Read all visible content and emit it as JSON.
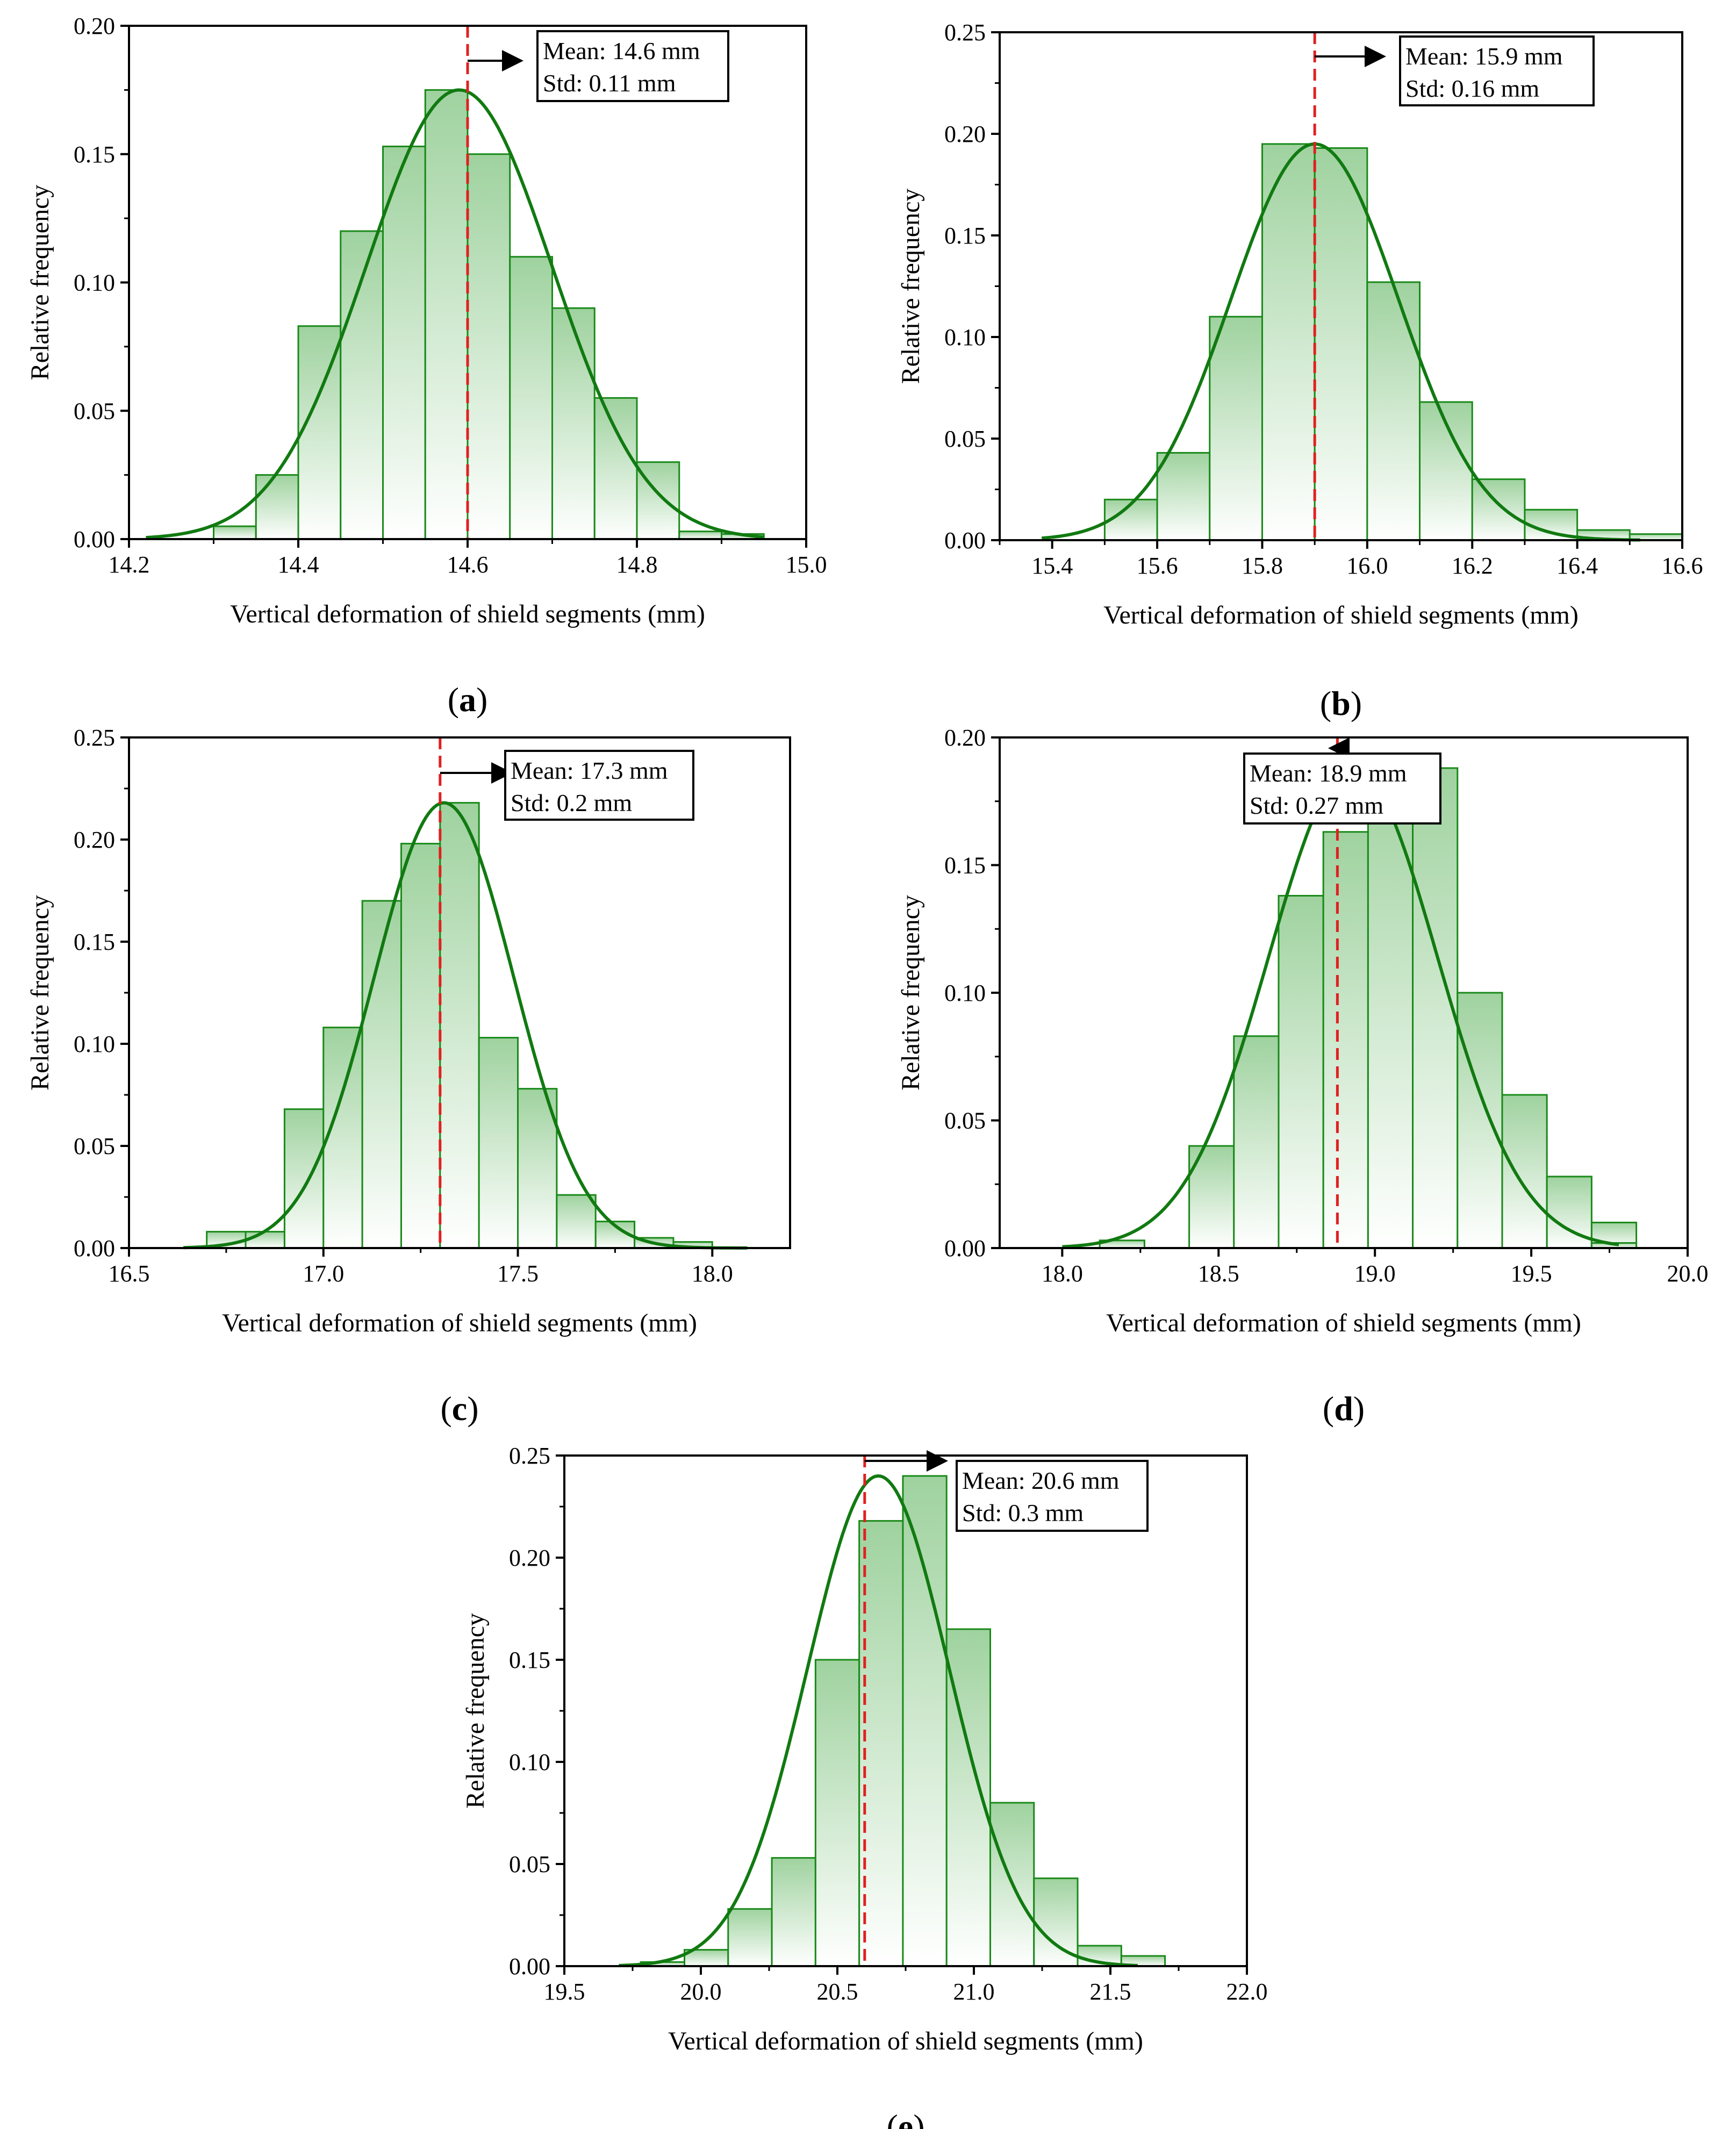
{
  "chart_data": [
    {
      "id": "a",
      "type": "bar",
      "panel_label": [
        "(",
        "a",
        ")"
      ],
      "xlabel": "Vertical deformation of shield segments (mm)",
      "ylabel": "Relative frequency",
      "xlim": [
        14.2,
        15.0
      ],
      "ylim": [
        0,
        0.2
      ],
      "xticks": [
        "14.2",
        "14.4",
        "14.6",
        "14.8",
        "15.0"
      ],
      "yticks": [
        "0.00",
        "0.05",
        "0.10",
        "0.15",
        "0.20"
      ],
      "bin_width": 0.05,
      "bin_starts": [
        14.3,
        14.35,
        14.4,
        14.45,
        14.5,
        14.55,
        14.6,
        14.65,
        14.7,
        14.75,
        14.8,
        14.85,
        14.9
      ],
      "values": [
        0.005,
        0.025,
        0.083,
        0.12,
        0.153,
        0.175,
        0.15,
        0.11,
        0.09,
        0.055,
        0.03,
        0.003,
        0.002
      ],
      "fit": {
        "mean": 14.59,
        "sd": 0.11,
        "peak": 0.175,
        "range": [
          14.22,
          14.95
        ]
      },
      "mean_line": 14.6,
      "annotation": {
        "mean": "Mean: 14.6 mm",
        "std": "Std: 0.11 mm"
      }
    },
    {
      "id": "b",
      "type": "bar",
      "panel_label": [
        "(",
        "b",
        ")"
      ],
      "xlabel": "Vertical deformation of shield segments (mm)",
      "ylabel": "Relative frequency",
      "xlim": [
        15.3,
        16.6
      ],
      "ylim": [
        0,
        0.25
      ],
      "xticks": [
        "15.4",
        "15.6",
        "15.8",
        "16.0",
        "16.2",
        "16.4",
        "16.6"
      ],
      "yticks": [
        "0.00",
        "0.05",
        "0.10",
        "0.15",
        "0.20",
        "0.25"
      ],
      "bin_width": 0.1,
      "bin_starts": [
        15.5,
        15.6,
        15.7,
        15.8,
        15.9,
        16.0,
        16.1,
        16.2,
        16.3,
        16.4
      ],
      "values": [
        0.02,
        0.043,
        0.11,
        0.195,
        0.193,
        0.127,
        0.068,
        0.03,
        0.015,
        0.005
      ],
      "extra_bar": {
        "start": 16.5,
        "value": 0.003
      },
      "fit": {
        "mean": 15.9,
        "sd": 0.16,
        "peak": 0.195,
        "range": [
          15.38,
          16.52
        ]
      },
      "mean_line": 15.9,
      "annotation": {
        "mean": "Mean: 15.9 mm",
        "std": "Std: 0.16 mm"
      }
    },
    {
      "id": "c",
      "type": "bar",
      "panel_label": [
        "(",
        "c",
        ")"
      ],
      "xlabel": "Vertical deformation of shield segments (mm)",
      "ylabel": "Relative frequency",
      "xlim": [
        16.5,
        18.2
      ],
      "ylim": [
        0,
        0.25
      ],
      "xticks": [
        "16.5",
        "17.0",
        "17.5",
        "18.0"
      ],
      "yticks": [
        "0.00",
        "0.05",
        "0.10",
        "0.15",
        "0.20",
        "0.25"
      ],
      "bin_width": 0.1,
      "bin_starts": [
        16.7,
        16.8,
        16.9,
        17.0,
        17.1,
        17.2,
        17.3,
        17.4,
        17.5,
        17.6,
        17.7,
        17.8,
        17.9,
        18.0
      ],
      "values": [
        0.008,
        0.008,
        0.068,
        0.108,
        0.17,
        0.198,
        0.218,
        0.103,
        0.078,
        0.026,
        0.013,
        0.005,
        0.003,
        0.0
      ],
      "fit": {
        "mean": 17.31,
        "sd": 0.18,
        "peak": 0.218,
        "range": [
          16.64,
          18.09
        ]
      },
      "mean_line": 17.3,
      "annotation": {
        "mean": "Mean: 17.3 mm",
        "std": "Std: 0.2 mm"
      }
    },
    {
      "id": "d",
      "type": "bar",
      "panel_label": [
        "(",
        "d",
        ")"
      ],
      "xlabel": "Vertical deformation of shield segments (mm)",
      "ylabel": "Relative frequency",
      "xlim": [
        17.8,
        20.0
      ],
      "ylim": [
        0,
        0.2
      ],
      "xticks": [
        "18.0",
        "18.5",
        "19.0",
        "19.5",
        "20.0"
      ],
      "yticks": [
        "0.00",
        "0.05",
        "0.10",
        "0.15",
        "0.20"
      ],
      "bin_width": 0.143,
      "bin_starts": [
        18.12,
        18.263,
        18.406,
        18.549,
        18.692,
        18.835,
        18.978,
        19.121,
        19.264,
        19.407,
        19.55,
        19.693
      ],
      "values": [
        0.003,
        0.0,
        0.04,
        0.083,
        0.138,
        0.163,
        0.188,
        0.188,
        0.1,
        0.06,
        0.028,
        0.01
      ],
      "extra_bar": {
        "start": 19.693,
        "value": 0.002
      },
      "fit": {
        "mean": 18.93,
        "sd": 0.27,
        "peak": 0.188,
        "range": [
          18.0,
          19.78
        ]
      },
      "mean_line": 18.88,
      "annotation": {
        "mean": "Mean: 18.9 mm",
        "std": "Std: 0.27 mm"
      }
    },
    {
      "id": "e",
      "type": "bar",
      "panel_label": [
        "(",
        "e",
        ")"
      ],
      "xlabel": "Vertical deformation of shield segments (mm)",
      "ylabel": "Relative frequency",
      "xlim": [
        19.5,
        22.0
      ],
      "ylim": [
        0,
        0.25
      ],
      "xticks": [
        "19.5",
        "20.0",
        "20.5",
        "21.0",
        "21.5",
        "22.0"
      ],
      "yticks": [
        "0.00",
        "0.05",
        "0.10",
        "0.15",
        "0.20",
        "0.25"
      ],
      "bin_width": 0.16,
      "bin_starts": [
        19.78,
        19.94,
        20.1,
        20.26,
        20.42,
        20.58,
        20.74,
        20.9,
        21.06,
        21.22,
        21.38,
        21.54
      ],
      "values": [
        0.002,
        0.008,
        0.028,
        0.053,
        0.15,
        0.218,
        0.24,
        0.165,
        0.08,
        0.043,
        0.01,
        0.005
      ],
      "fit": {
        "mean": 20.65,
        "sd": 0.26,
        "peak": 0.24,
        "range": [
          19.7,
          21.6
        ]
      },
      "mean_line": 20.6,
      "annotation": {
        "mean": "Mean: 20.6 mm",
        "std": "Std: 0.3 mm"
      }
    }
  ],
  "colors": {
    "bar_stroke": "#1a8a1a",
    "bar_fill_top": "#9fd29f",
    "bar_fill_bottom": "#ffffff",
    "fit_line": "#117a11",
    "mean_line": "#e02020",
    "arrow": "#000000"
  }
}
